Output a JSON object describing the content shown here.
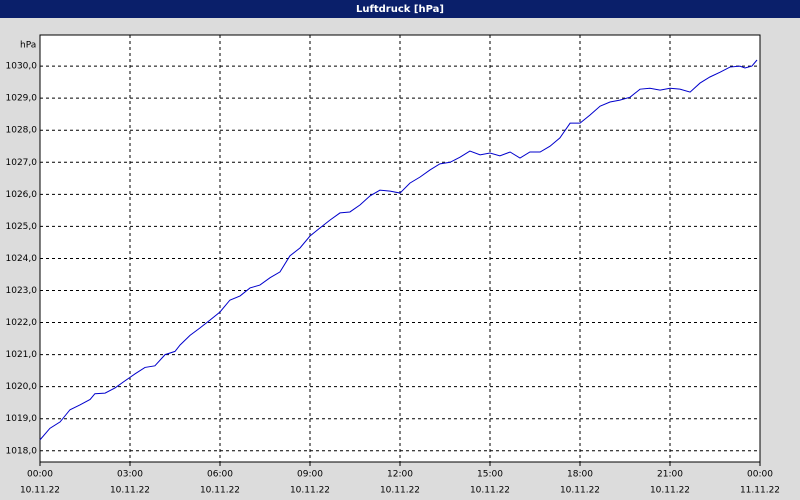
{
  "chart_data": {
    "type": "line",
    "title": "Luftdruck [hPa]",
    "y_label": "hPa",
    "x": [
      0,
      0.33,
      0.67,
      1.0,
      1.33,
      1.67,
      1.83,
      2.17,
      2.5,
      2.83,
      3.17,
      3.5,
      3.83,
      4.17,
      4.5,
      4.67,
      5.0,
      5.33,
      5.67,
      6.0,
      6.33,
      6.67,
      7.0,
      7.33,
      7.67,
      8.0,
      8.33,
      8.67,
      9.0,
      9.33,
      9.67,
      10.0,
      10.33,
      10.67,
      11.0,
      11.33,
      11.67,
      12.0,
      12.33,
      12.67,
      13.0,
      13.33,
      13.67,
      14.0,
      14.33,
      14.67,
      15.0,
      15.33,
      15.67,
      16.0,
      16.33,
      16.67,
      17.0,
      17.33,
      17.67,
      18.0,
      18.33,
      18.67,
      19.0,
      19.33,
      19.67,
      20.0,
      20.33,
      20.67,
      21.0,
      21.33,
      21.67,
      22.0,
      22.33,
      22.67,
      23.0,
      23.33,
      23.5,
      23.73,
      23.9
    ],
    "series": [
      {
        "color": "#0000cc",
        "values": [
          1018.34,
          1018.7,
          1018.9,
          1019.28,
          1019.43,
          1019.6,
          1019.78,
          1019.8,
          1019.96,
          1020.18,
          1020.4,
          1020.6,
          1020.65,
          1021.0,
          1021.1,
          1021.3,
          1021.6,
          1021.83,
          1022.08,
          1022.33,
          1022.7,
          1022.83,
          1023.08,
          1023.17,
          1023.4,
          1023.58,
          1024.08,
          1024.33,
          1024.7,
          1024.95,
          1025.2,
          1025.42,
          1025.45,
          1025.67,
          1025.95,
          1026.13,
          1026.1,
          1026.04,
          1026.35,
          1026.54,
          1026.76,
          1026.95,
          1027.0,
          1027.16,
          1027.35,
          1027.23,
          1027.29,
          1027.2,
          1027.32,
          1027.13,
          1027.32,
          1027.32,
          1027.5,
          1027.76,
          1028.22,
          1028.22,
          1028.47,
          1028.75,
          1028.88,
          1028.94,
          1029.03,
          1029.28,
          1029.31,
          1029.25,
          1029.31,
          1029.28,
          1029.19,
          1029.47,
          1029.66,
          1029.81,
          1029.97,
          1030.0,
          1029.94,
          1030.0,
          1030.19
        ]
      }
    ],
    "xlim": [
      0,
      24
    ],
    "xticks": [
      {
        "value": 0,
        "label": [
          "00:00",
          "10.11.22"
        ]
      },
      {
        "value": 3,
        "label": [
          "03:00",
          "10.11.22"
        ]
      },
      {
        "value": 6,
        "label": [
          "06:00",
          "10.11.22"
        ]
      },
      {
        "value": 9,
        "label": [
          "09:00",
          "10.11.22"
        ]
      },
      {
        "value": 12,
        "label": [
          "12:00",
          "10.11.22"
        ]
      },
      {
        "value": 15,
        "label": [
          "15:00",
          "10.11.22"
        ]
      },
      {
        "value": 18,
        "label": [
          "18:00",
          "10.11.22"
        ]
      },
      {
        "value": 21,
        "label": [
          "21:00",
          "10.11.22"
        ]
      },
      {
        "value": 24,
        "label": [
          "00:00",
          "11.11.22"
        ]
      }
    ],
    "ylim": [
      1017.65,
      1030.97
    ],
    "yticks": [
      {
        "value": 1018,
        "label": "1018,0"
      },
      {
        "value": 1019,
        "label": "1019,0"
      },
      {
        "value": 1020,
        "label": "1020,0"
      },
      {
        "value": 1021,
        "label": "1021,0"
      },
      {
        "value": 1022,
        "label": "1022,0"
      },
      {
        "value": 1023,
        "label": "1023,0"
      },
      {
        "value": 1024,
        "label": "1024,0"
      },
      {
        "value": 1025,
        "label": "1025,0"
      },
      {
        "value": 1026,
        "label": "1026,0"
      },
      {
        "value": 1027,
        "label": "1027,0"
      },
      {
        "value": 1028,
        "label": "1028,0"
      },
      {
        "value": 1029,
        "label": "1029,0"
      },
      {
        "value": 1030,
        "label": "1030,0"
      }
    ],
    "grid": true
  }
}
